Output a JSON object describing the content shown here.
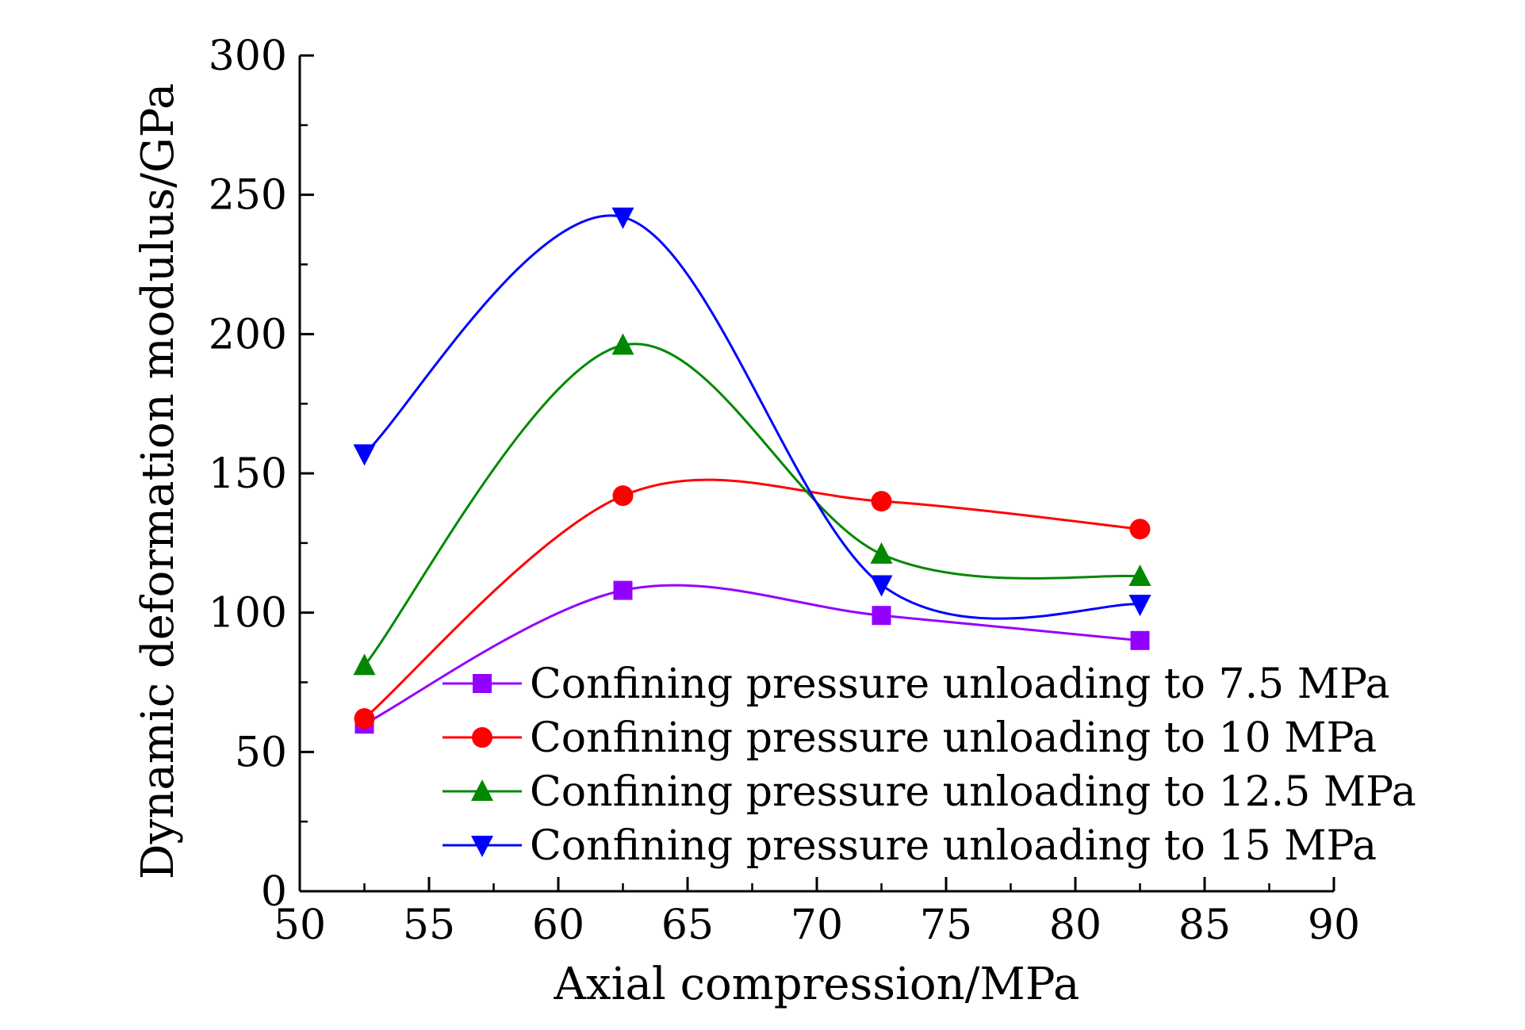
{
  "chart_data": {
    "type": "line",
    "xlabel": "Axial compression/MPa",
    "ylabel": "Dynamic deformation modulus/GPa",
    "xlim": [
      50,
      90
    ],
    "ylim": [
      0,
      300
    ],
    "x_ticks": [
      50,
      55,
      60,
      65,
      70,
      75,
      80,
      85,
      90
    ],
    "x_tick_labels": [
      "50",
      "55",
      "60",
      "65",
      "70",
      "75",
      "80",
      "85",
      "90"
    ],
    "y_ticks": [
      0,
      50,
      100,
      150,
      200,
      250,
      300
    ],
    "y_tick_labels": [
      "0",
      "50",
      "100",
      "150",
      "200",
      "250",
      "300"
    ],
    "grid": false,
    "legend_position": "bottom-center",
    "x": [
      52.5,
      62.5,
      72.5,
      82.5
    ],
    "series": [
      {
        "name": "Confining pressure unloading to 7.5 MPa",
        "values": [
          60,
          108,
          99,
          90
        ],
        "color": "#9400ff",
        "marker": "square"
      },
      {
        "name": "Confining pressure unloading to 10 MPa",
        "values": [
          62,
          142,
          140,
          130
        ],
        "color": "#ff0000",
        "marker": "circle"
      },
      {
        "name": "Confining pressure unloading to 12.5 MPa",
        "values": [
          81,
          196,
          121,
          113
        ],
        "color": "#008800",
        "marker": "triangle-up"
      },
      {
        "name": "Confining pressure unloading to 15 MPa",
        "values": [
          157,
          242,
          110,
          103
        ],
        "color": "#0000ff",
        "marker": "triangle-down"
      }
    ]
  }
}
